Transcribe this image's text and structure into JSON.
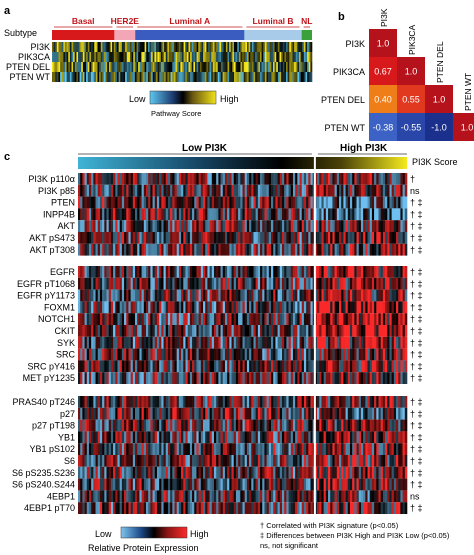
{
  "panel_a": {
    "letter": "a",
    "subtype_label": "Subtype",
    "subtypes": [
      {
        "name": "Basal",
        "color": "#d7191c",
        "fraction": 0.24
      },
      {
        "name": "HER2E",
        "color": "#f3a6b6",
        "fraction": 0.08
      },
      {
        "name": "Luminal A",
        "color": "#3a5bbf",
        "fraction": 0.42
      },
      {
        "name": "Luminal B",
        "color": "#a7cbe8",
        "fraction": 0.22
      },
      {
        "name": "NL",
        "color": "#3aa13a",
        "fraction": 0.04
      }
    ],
    "rows": [
      "PI3K",
      "PIK3CA",
      "PTEN DEL",
      "PTEN WT"
    ],
    "legend": {
      "low": "Low",
      "high": "High",
      "title": "Pathway Score"
    }
  },
  "panel_b": {
    "letter": "b",
    "labels": [
      "PI3K",
      "PIK3CA",
      "PTEN DEL",
      "PTEN WT"
    ],
    "matrix": [
      [
        "1.0",
        "",
        "",
        ""
      ],
      [
        "0.67",
        "1.0",
        "",
        ""
      ],
      [
        "0.40",
        "0.55",
        "1.0",
        ""
      ],
      [
        "-0.38",
        "-0.55",
        "-1.0",
        "1.0"
      ]
    ],
    "colors": [
      [
        "#b5121b",
        "",
        "",
        ""
      ],
      [
        "#d7191c",
        "#b5121b",
        "",
        ""
      ],
      [
        "#ef7d18",
        "#e0391f",
        "#b5121b",
        ""
      ],
      [
        "#3b62c4",
        "#2946a8",
        "#1b2f8c",
        "#b5121b"
      ]
    ]
  },
  "panel_c": {
    "letter": "c",
    "low_label": "Low PI3K",
    "high_label": "High PI3K",
    "score_label": "PI3K Score",
    "high_fraction": 0.28,
    "groups": [
      {
        "proteins": [
          {
            "name": "PI3K p110α",
            "sig": "†"
          },
          {
            "name": "PI3K p85",
            "sig": "ns"
          },
          {
            "name": "PTEN",
            "sig": "† ‡"
          },
          {
            "name": "INPP4B",
            "sig": "† ‡"
          },
          {
            "name": "AKT",
            "sig": "† ‡"
          },
          {
            "name": "AKT pS473",
            "sig": "† ‡"
          },
          {
            "name": "AKT pT308",
            "sig": "† ‡"
          }
        ]
      },
      {
        "proteins": [
          {
            "name": "EGFR",
            "sig": "† ‡"
          },
          {
            "name": "EGFR pT1068",
            "sig": "† ‡"
          },
          {
            "name": "EGFR pY1173",
            "sig": "† ‡"
          },
          {
            "name": "FOXM1",
            "sig": "† ‡"
          },
          {
            "name": "NOTCH1",
            "sig": "† ‡"
          },
          {
            "name": "CKIT",
            "sig": "† ‡"
          },
          {
            "name": "SYK",
            "sig": "† ‡"
          },
          {
            "name": "SRC",
            "sig": "† ‡"
          },
          {
            "name": "SRC pY416",
            "sig": "† ‡"
          },
          {
            "name": "MET pY1235",
            "sig": "† ‡"
          }
        ]
      },
      {
        "proteins": [
          {
            "name": "PRAS40 pT246",
            "sig": "† ‡"
          },
          {
            "name": "p27",
            "sig": "† ‡"
          },
          {
            "name": "p27 pT198",
            "sig": "† ‡"
          },
          {
            "name": "YB1",
            "sig": "† ‡"
          },
          {
            "name": "YB1 pS102",
            "sig": "† ‡"
          },
          {
            "name": "S6",
            "sig": "† ‡"
          },
          {
            "name": "S6 pS235.S236",
            "sig": "† ‡"
          },
          {
            "name": "S6 pS240.S244",
            "sig": "† ‡"
          },
          {
            "name": "4EBP1",
            "sig": "ns"
          },
          {
            "name": "4EBP1 pT70",
            "sig": "† ‡"
          }
        ]
      }
    ],
    "legend": {
      "low": "Low",
      "high": "High",
      "title": "Relative Protein Expression"
    },
    "footnotes": [
      "† Correlated with PI3K signature (p<0.05)",
      "‡ Differences between PI3K High and PI3K Low (p<0.05)",
      "ns, not significant"
    ]
  }
}
